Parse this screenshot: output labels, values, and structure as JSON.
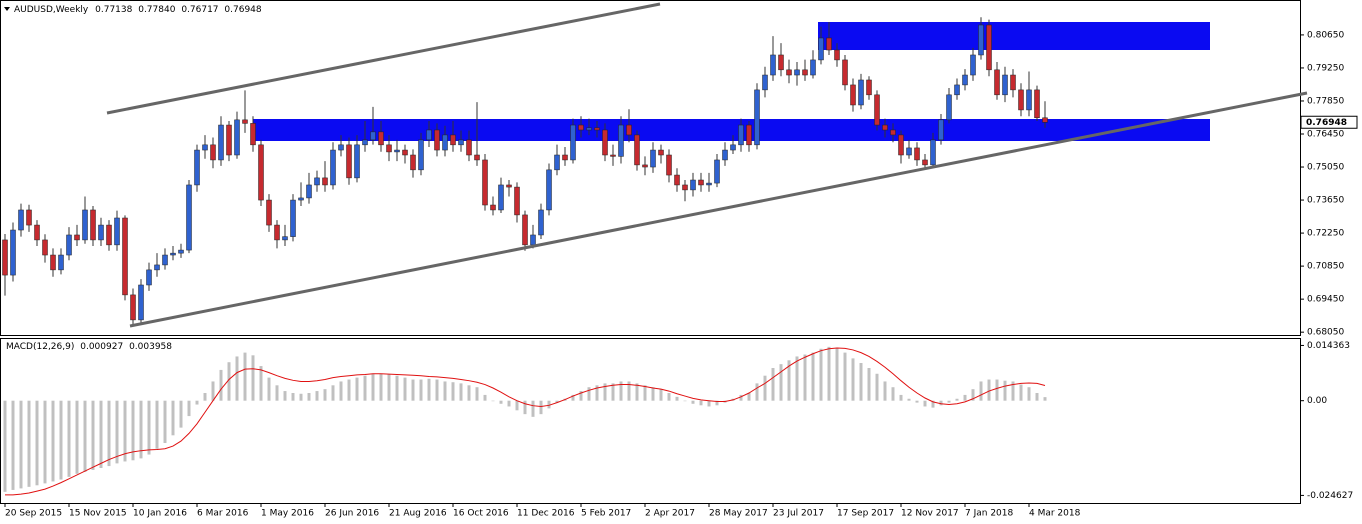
{
  "chart_data": {
    "type": "candlestick",
    "symbol": "AUDUSD,Weekly",
    "header_values": [
      "0.77138",
      "0.77840",
      "0.76717",
      "0.76948"
    ],
    "categories": [
      "20 Sep 2015",
      null,
      null,
      null,
      null,
      null,
      null,
      null,
      "15 Nov 2015",
      null,
      null,
      null,
      null,
      null,
      null,
      null,
      "10 Jan 2016",
      null,
      null,
      null,
      null,
      null,
      null,
      null,
      "6 Mar 2016",
      null,
      null,
      null,
      null,
      null,
      null,
      null,
      "1 May 2016",
      null,
      null,
      null,
      null,
      null,
      null,
      null,
      "26 Jun 2016",
      null,
      null,
      null,
      null,
      null,
      null,
      null,
      "21 Aug 2016",
      null,
      null,
      null,
      null,
      null,
      null,
      null,
      "16 Oct 2016",
      null,
      null,
      null,
      null,
      null,
      null,
      null,
      "11 Dec 2016",
      null,
      null,
      null,
      null,
      null,
      null,
      null,
      "5 Feb 2017",
      null,
      null,
      null,
      null,
      null,
      null,
      null,
      "2 Apr 2017",
      null,
      null,
      null,
      null,
      null,
      null,
      null,
      "28 May 2017",
      null,
      null,
      null,
      null,
      null,
      null,
      null,
      "23 Jul 2017",
      null,
      null,
      null,
      null,
      null,
      null,
      null,
      "17 Sep 2017",
      null,
      null,
      null,
      null,
      null,
      null,
      null,
      "12 Nov 2017",
      null,
      null,
      null,
      null,
      null,
      null,
      null,
      "7 Jan 2018",
      null,
      null,
      null,
      null,
      null,
      null,
      null,
      "4 Mar 2018",
      null,
      null
    ],
    "open": [
      0.7196,
      0.7047,
      0.7238,
      0.7323,
      0.7259,
      0.7196,
      0.7132,
      0.7069,
      0.7132,
      0.7217,
      0.7196,
      0.7323,
      0.7196,
      0.7259,
      0.7175,
      0.7289,
      0.6963,
      0.6857,
      0.7005,
      0.7069,
      0.709,
      0.7132,
      0.714,
      0.7153,
      0.7429,
      0.7577,
      0.7599,
      0.7535,
      0.7683,
      0.7556,
      0.7705,
      0.769,
      0.7599,
      0.7365,
      0.7259,
      0.7196,
      0.721,
      0.7365,
      0.7374,
      0.7429,
      0.7459,
      0.7429,
      0.7577,
      0.7599,
      0.7459,
      0.7599,
      0.762,
      0.7654,
      0.7599,
      0.7569,
      0.7577,
      0.7556,
      0.7493,
      0.762,
      0.7662,
      0.7577,
      0.7641,
      0.7599,
      0.762,
      0.7556,
      0.7535,
      0.7344,
      0.7323,
      0.7429,
      0.742,
      0.7302,
      0.7175,
      0.7217,
      0.7323,
      0.7493,
      0.7556,
      0.7535,
      0.7683,
      0.7662,
      0.7671,
      0.7662,
      0.7556,
      0.755,
      0.7683,
      0.7641,
      0.7514,
      0.7505,
      0.7577,
      0.7556,
      0.7471,
      0.7429,
      0.7408,
      0.745,
      0.7429,
      0.7437,
      0.7535,
      0.7577,
      0.7599,
      0.7683,
      0.7599,
      0.7832,
      0.7895,
      0.798,
      0.7917,
      0.7895,
      0.7917,
      0.7895,
      0.7959,
      0.8052,
      0.8001,
      0.7959,
      0.7853,
      0.7768,
      0.7874,
      0.7811,
      0.7683,
      0.7662,
      0.7641,
      0.7556,
      0.7586,
      0.7535,
      0.7514,
      0.762,
      0.7705,
      0.7811,
      0.7853,
      0.7895,
      0.798,
      0.8107,
      0.7917,
      0.7811,
      0.7895,
      0.7832,
      0.7747,
      0.7832,
      0.77138
    ],
    "high": [
      0.7221,
      0.727,
      0.735,
      0.7345,
      0.728,
      0.722,
      0.716,
      0.716,
      0.725,
      0.726,
      0.738,
      0.734,
      0.729,
      0.728,
      0.732,
      0.73,
      0.699,
      0.703,
      0.71,
      0.714,
      0.716,
      0.717,
      0.718,
      0.745,
      0.76,
      0.764,
      0.763,
      0.772,
      0.77,
      0.774,
      0.783,
      0.772,
      0.762,
      0.739,
      0.728,
      0.726,
      0.739,
      0.744,
      0.748,
      0.749,
      0.753,
      0.761,
      0.764,
      0.763,
      0.764,
      0.77,
      0.776,
      0.77,
      0.764,
      0.762,
      0.76,
      0.758,
      0.765,
      0.77,
      0.769,
      0.768,
      0.77,
      0.766,
      0.766,
      0.778,
      0.756,
      0.738,
      0.746,
      0.745,
      0.744,
      0.732,
      0.726,
      0.735,
      0.752,
      0.76,
      0.759,
      0.771,
      0.772,
      0.771,
      0.77,
      0.769,
      0.76,
      0.772,
      0.775,
      0.766,
      0.755,
      0.761,
      0.76,
      0.758,
      0.75,
      0.745,
      0.748,
      0.748,
      0.748,
      0.756,
      0.761,
      0.764,
      0.771,
      0.77,
      0.786,
      0.793,
      0.806,
      0.803,
      0.796,
      0.795,
      0.796,
      0.8,
      0.81,
      0.812,
      0.803,
      0.798,
      0.788,
      0.79,
      0.789,
      0.783,
      0.771,
      0.769,
      0.766,
      0.762,
      0.761,
      0.756,
      0.765,
      0.773,
      0.784,
      0.788,
      0.792,
      0.801,
      0.814,
      0.813,
      0.795,
      0.793,
      0.792,
      0.786,
      0.791,
      0.785,
      0.7784
    ],
    "low": [
      0.696,
      0.702,
      0.721,
      0.723,
      0.717,
      0.71,
      0.704,
      0.705,
      0.711,
      0.717,
      0.718,
      0.717,
      0.717,
      0.715,
      0.715,
      0.694,
      0.683,
      0.684,
      0.698,
      0.704,
      0.707,
      0.711,
      0.712,
      0.714,
      0.74,
      0.754,
      0.75,
      0.751,
      0.753,
      0.754,
      0.765,
      0.757,
      0.734,
      0.723,
      0.716,
      0.717,
      0.719,
      0.734,
      0.735,
      0.74,
      0.74,
      0.741,
      0.755,
      0.743,
      0.744,
      0.757,
      0.76,
      0.757,
      0.753,
      0.753,
      0.752,
      0.746,
      0.747,
      0.759,
      0.755,
      0.755,
      0.757,
      0.757,
      0.753,
      0.751,
      0.732,
      0.73,
      0.731,
      0.738,
      0.727,
      0.715,
      0.716,
      0.72,
      0.73,
      0.747,
      0.751,
      0.752,
      0.763,
      0.764,
      0.763,
      0.753,
      0.751,
      0.752,
      0.761,
      0.749,
      0.747,
      0.748,
      0.752,
      0.744,
      0.74,
      0.736,
      0.738,
      0.74,
      0.74,
      0.742,
      0.751,
      0.756,
      0.757,
      0.757,
      0.758,
      0.78,
      0.787,
      0.789,
      0.786,
      0.785,
      0.787,
      0.788,
      0.794,
      0.798,
      0.793,
      0.783,
      0.774,
      0.775,
      0.779,
      0.766,
      0.763,
      0.761,
      0.752,
      0.754,
      0.751,
      0.75,
      0.75,
      0.76,
      0.769,
      0.779,
      0.783,
      0.787,
      0.796,
      0.789,
      0.779,
      0.778,
      0.78,
      0.772,
      0.772,
      0.77,
      0.76717
    ],
    "close": [
      0.7047,
      0.7238,
      0.7323,
      0.7259,
      0.7196,
      0.7132,
      0.7069,
      0.7132,
      0.7217,
      0.7196,
      0.7323,
      0.7196,
      0.7259,
      0.7175,
      0.7289,
      0.6963,
      0.6857,
      0.7005,
      0.7069,
      0.709,
      0.7132,
      0.714,
      0.7153,
      0.7429,
      0.7577,
      0.7599,
      0.7535,
      0.7683,
      0.7556,
      0.7705,
      0.769,
      0.7599,
      0.7365,
      0.7259,
      0.7196,
      0.721,
      0.7365,
      0.7374,
      0.7429,
      0.7459,
      0.7429,
      0.7577,
      0.7599,
      0.7459,
      0.7599,
      0.762,
      0.7654,
      0.7599,
      0.7569,
      0.7577,
      0.7556,
      0.7493,
      0.762,
      0.7662,
      0.7577,
      0.7641,
      0.7599,
      0.762,
      0.7556,
      0.7535,
      0.7344,
      0.7323,
      0.7429,
      0.742,
      0.7302,
      0.7175,
      0.7217,
      0.7323,
      0.7493,
      0.7556,
      0.7535,
      0.7683,
      0.7662,
      0.7671,
      0.7662,
      0.7556,
      0.755,
      0.7683,
      0.7641,
      0.7514,
      0.7505,
      0.7577,
      0.7556,
      0.7471,
      0.7429,
      0.7408,
      0.745,
      0.7429,
      0.7437,
      0.7535,
      0.7577,
      0.7599,
      0.7683,
      0.7599,
      0.7832,
      0.7895,
      0.798,
      0.7917,
      0.7895,
      0.7917,
      0.7895,
      0.7959,
      0.8052,
      0.8001,
      0.7959,
      0.7853,
      0.7768,
      0.7874,
      0.7811,
      0.7683,
      0.7662,
      0.7641,
      0.7556,
      0.7586,
      0.7535,
      0.7514,
      0.762,
      0.7705,
      0.7811,
      0.7853,
      0.7895,
      0.798,
      0.8107,
      0.7917,
      0.7811,
      0.7895,
      0.7832,
      0.7747,
      0.7832,
      0.77138,
      0.76948
    ],
    "up_color": "#2f62d0",
    "down_color": "#c62a2f",
    "ylim": [
      0.6793,
      0.8213
    ],
    "yticks": [
      {
        "value": 0.8065,
        "label": "0.80650"
      },
      {
        "value": 0.7925,
        "label": "0.79250"
      },
      {
        "value": 0.7785,
        "label": "0.77850"
      },
      {
        "value": 0.7645,
        "label": "0.76450"
      },
      {
        "value": 0.7505,
        "label": "0.75050"
      },
      {
        "value": 0.7365,
        "label": "0.73650"
      },
      {
        "value": 0.7225,
        "label": "0.72250"
      },
      {
        "value": 0.7085,
        "label": "0.70850"
      },
      {
        "value": 0.6945,
        "label": "0.69450"
      },
      {
        "value": 0.6805,
        "label": "0.68050"
      }
    ],
    "grid": false,
    "macd": {
      "title": "MACD(12,26,9)",
      "histogram_color": "#c0c0c0",
      "signal_color": "#e01010",
      "histogram": [
        -0.0237,
        -0.0232,
        -0.0228,
        -0.0224,
        -0.022,
        -0.0215,
        -0.021,
        -0.0205,
        -0.0198,
        -0.019,
        -0.0185,
        -0.018,
        -0.0175,
        -0.017,
        -0.0163,
        -0.0158,
        -0.0155,
        -0.015,
        -0.014,
        -0.0125,
        -0.011,
        -0.009,
        -0.007,
        -0.004,
        -0.001,
        0.002,
        0.005,
        0.008,
        0.01,
        0.0115,
        0.0125,
        0.0118,
        0.009,
        0.006,
        0.004,
        0.0025,
        0.002,
        0.0018,
        0.002,
        0.0025,
        0.003,
        0.004,
        0.005,
        0.0055,
        0.006,
        0.0065,
        0.007,
        0.007,
        0.0068,
        0.0065,
        0.006,
        0.0055,
        0.0055,
        0.0057,
        0.0055,
        0.005,
        0.0048,
        0.0045,
        0.004,
        0.0035,
        0.0015,
        0,
        -0.0008,
        -0.0015,
        -0.0025,
        -0.0035,
        -0.0042,
        -0.0035,
        -0.002,
        -0.0005,
        0.0005,
        0.0015,
        0.0025,
        0.0035,
        0.004,
        0.0045,
        0.0045,
        0.005,
        0.005,
        0.0045,
        0.004,
        0.0035,
        0.003,
        0.002,
        0.001,
        0,
        -0.0008,
        -0.0012,
        -0.0015,
        -0.0012,
        -0.0005,
        0.0005,
        0.0015,
        0.002,
        0.0045,
        0.0065,
        0.0085,
        0.0095,
        0.0105,
        0.0115,
        0.012,
        0.0125,
        0.0135,
        0.014,
        0.0138,
        0.0125,
        0.011,
        0.0098,
        0.0085,
        0.007,
        0.005,
        0.0035,
        0.0015,
        0.0005,
        -0.0005,
        -0.0015,
        -0.0018,
        -0.0012,
        -0.0005,
        0.0005,
        0.0015,
        0.003,
        0.005,
        0.0055,
        0.0055,
        0.0052,
        0.005,
        0.0042,
        0.0035,
        0.002,
        0.000927
      ],
      "signal": [
        -0.0245,
        -0.0245,
        -0.0243,
        -0.024,
        -0.0235,
        -0.023,
        -0.0222,
        -0.0213,
        -0.0203,
        -0.0193,
        -0.0183,
        -0.0173,
        -0.0163,
        -0.0153,
        -0.0145,
        -0.0138,
        -0.0133,
        -0.013,
        -0.0128,
        -0.0127,
        -0.0125,
        -0.0118,
        -0.0105,
        -0.0085,
        -0.006,
        -0.003,
        0.0,
        0.003,
        0.0055,
        0.0073,
        0.0082,
        0.0083,
        0.008,
        0.0073,
        0.0065,
        0.0058,
        0.0053,
        0.005,
        0.005,
        0.0052,
        0.0055,
        0.006,
        0.0063,
        0.0065,
        0.0067,
        0.0068,
        0.007,
        0.007,
        0.0069,
        0.0068,
        0.0067,
        0.0066,
        0.0065,
        0.0063,
        0.0062,
        0.006,
        0.0058,
        0.0055,
        0.0052,
        0.0048,
        0.0042,
        0.0033,
        0.0022,
        0.001,
        0,
        -0.0008,
        -0.0013,
        -0.0015,
        -0.0012,
        -0.0005,
        0.0003,
        0.0012,
        0.002,
        0.0027,
        0.0033,
        0.0037,
        0.004,
        0.0042,
        0.0042,
        0.004,
        0.0037,
        0.0033,
        0.003,
        0.0025,
        0.0018,
        0.0012,
        0.0006,
        0.0002,
        0,
        -0.0002,
        -0.0002,
        0.0002,
        0.001,
        0.002,
        0.0033,
        0.0045,
        0.006,
        0.0075,
        0.009,
        0.0103,
        0.0113,
        0.0122,
        0.013,
        0.0135,
        0.0137,
        0.0136,
        0.0132,
        0.0125,
        0.0115,
        0.0102,
        0.0087,
        0.007,
        0.0052,
        0.0035,
        0.002,
        0.0007,
        -0.0003,
        -0.0008,
        -0.001,
        -0.0008,
        -0.0003,
        0.0005,
        0.0015,
        0.0025,
        0.0032,
        0.0038,
        0.0042,
        0.0045,
        0.0046,
        0.0045,
        0.003958
      ],
      "ylim": [
        -0.0266,
        0.0163
      ],
      "yticks": [
        {
          "value": 0.014363,
          "label": "0.014363"
        },
        {
          "value": 0,
          "label": "0.00"
        },
        {
          "value": -0.024627,
          "label": "-0.024627"
        }
      ]
    }
  }
}
